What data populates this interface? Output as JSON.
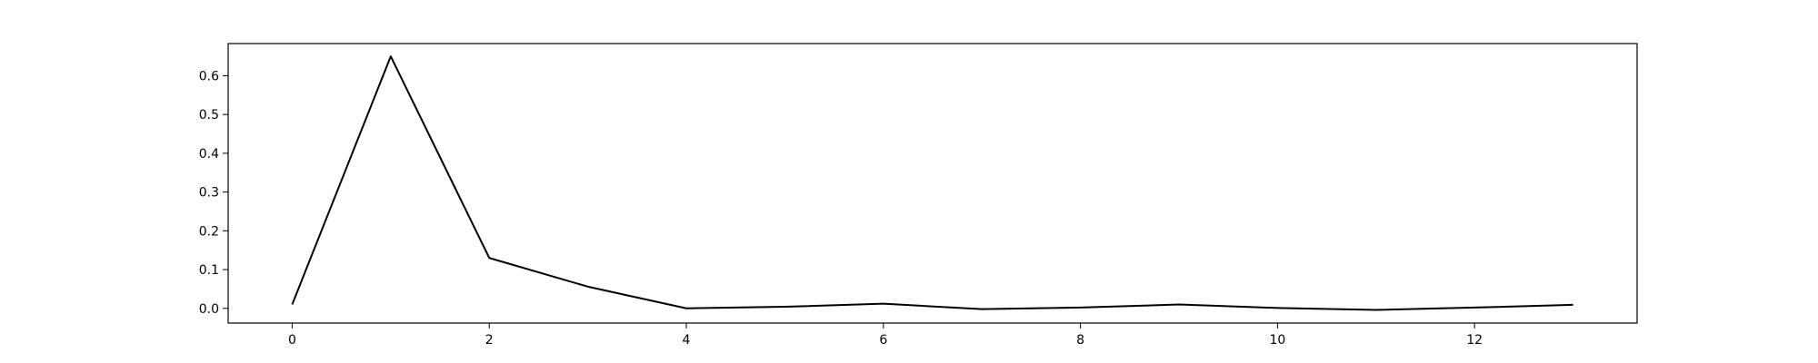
{
  "chart_data": {
    "type": "line",
    "title": "",
    "xlabel": "",
    "ylabel": "",
    "xlim": [
      -0.65,
      13.65
    ],
    "ylim": [
      -0.038,
      0.683
    ],
    "grid": false,
    "legend": "none",
    "x_ticks": [
      0,
      2,
      4,
      6,
      8,
      10,
      12
    ],
    "x_tick_labels": [
      "0",
      "2",
      "4",
      "6",
      "8",
      "10",
      "12"
    ],
    "y_ticks": [
      0.0,
      0.1,
      0.2,
      0.3,
      0.4,
      0.5,
      0.6
    ],
    "y_tick_labels": [
      "0.0",
      "0.1",
      "0.2",
      "0.3",
      "0.4",
      "0.5",
      "0.6"
    ],
    "series": [
      {
        "color": "#000000",
        "x": [
          0,
          1,
          2,
          3,
          4,
          5,
          6,
          7,
          8,
          9,
          10,
          11,
          12,
          13
        ],
        "values": [
          0.01,
          0.65,
          0.13,
          0.056,
          0.0,
          0.004,
          0.012,
          -0.002,
          0.002,
          0.01,
          0.001,
          -0.004,
          0.002,
          0.009
        ]
      }
    ]
  }
}
